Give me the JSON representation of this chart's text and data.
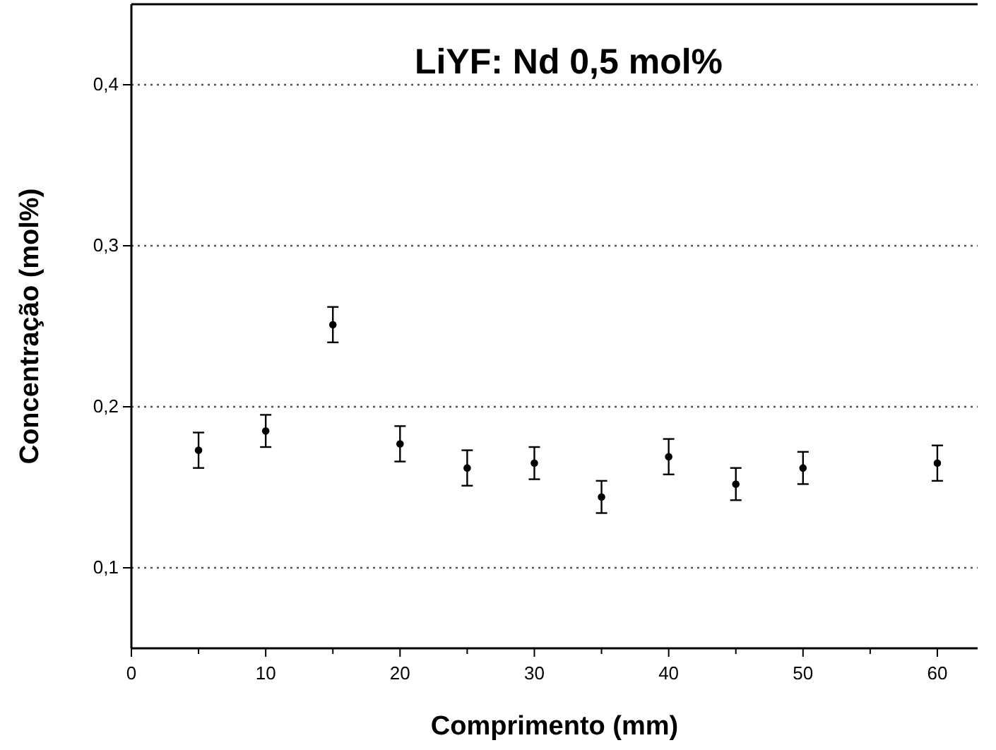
{
  "chart_data": {
    "type": "scatter",
    "title": "LiYF: Nd 0,5 mol%",
    "xlabel": "Comprimento (mm)",
    "ylabel": "Concentração (mol%)",
    "x": [
      5,
      10,
      15,
      20,
      25,
      30,
      35,
      40,
      45,
      50,
      60
    ],
    "values": [
      0.173,
      0.185,
      0.251,
      0.177,
      0.162,
      0.165,
      0.144,
      0.169,
      0.152,
      0.162,
      0.165
    ],
    "errors": [
      0.011,
      0.01,
      0.011,
      0.011,
      0.011,
      0.01,
      0.01,
      0.011,
      0.01,
      0.01,
      0.011
    ],
    "color": "#000000",
    "marker": "circle",
    "xlim": [
      0,
      63
    ],
    "xticks": [
      0,
      {
        "value": 5,
        "label": null
      },
      10,
      {
        "value": 15,
        "label": null
      },
      20,
      {
        "value": 25,
        "label": null
      },
      30,
      {
        "value": 35,
        "label": null
      },
      40,
      {
        "value": 45,
        "label": null
      },
      50,
      {
        "value": 55,
        "label": null
      },
      60
    ],
    "ylim": [
      0.05,
      0.45
    ],
    "yticks": [
      {
        "value": 0.1,
        "label": "0,1"
      },
      {
        "value": 0.2,
        "label": "0,2"
      },
      {
        "value": 0.3,
        "label": "0,3"
      },
      {
        "value": 0.4,
        "label": "0,4"
      }
    ],
    "grid": "y"
  }
}
